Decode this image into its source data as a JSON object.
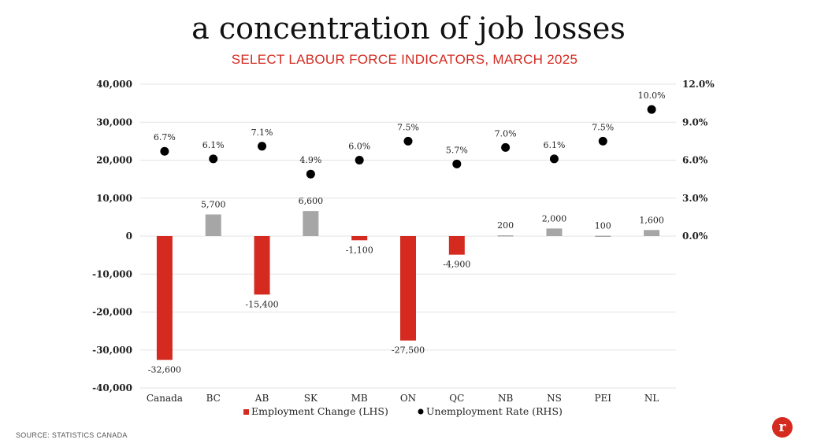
{
  "page": {
    "title": "a concentration of job losses",
    "subtitle": "SELECT LABOUR FORCE INDICATORS, MARCH 2025",
    "source": "SOURCE: STATISTICS CANADA",
    "logo_letter": "r"
  },
  "colors": {
    "negative_bar": "#d42a20",
    "positive_bar": "#a6a6a6",
    "dot": "#000000",
    "grid": "#e3e3e3"
  },
  "chart_data": {
    "type": "bar",
    "categories": [
      "Canada",
      "BC",
      "AB",
      "SK",
      "MB",
      "ON",
      "QC",
      "NB",
      "NS",
      "PEI",
      "NL"
    ],
    "series": [
      {
        "name": "Employment Change (LHS)",
        "type": "bar",
        "axis": "left",
        "values": [
          -32600,
          5700,
          -15400,
          6600,
          -1100,
          -27500,
          -4900,
          200,
          2000,
          100,
          1600
        ],
        "labels": [
          "-32,600",
          "5,700",
          "-15,400",
          "6,600",
          "-1,100",
          "-27,500",
          "-4,900",
          "200",
          "2,000",
          "100",
          "1,600"
        ]
      },
      {
        "name": "Unemployment Rate (RHS)",
        "type": "scatter",
        "axis": "right",
        "values": [
          6.7,
          6.1,
          7.1,
          4.9,
          6.0,
          7.5,
          5.7,
          7.0,
          6.1,
          7.5,
          10.0
        ],
        "labels": [
          "6.7%",
          "6.1%",
          "7.1%",
          "4.9%",
          "6.0%",
          "7.5%",
          "5.7%",
          "7.0%",
          "6.1%",
          "7.5%",
          "10.0%"
        ]
      }
    ],
    "y_left": {
      "ylim": [
        -40000,
        40000
      ],
      "ticks": [
        40000,
        30000,
        20000,
        10000,
        0,
        -10000,
        -20000,
        -30000,
        -40000
      ],
      "tick_labels": [
        "40,000",
        "30,000",
        "20,000",
        "10,000",
        "0",
        "-10,000",
        "-20,000",
        "-30,000",
        "-40,000"
      ]
    },
    "y_right": {
      "ylim": [
        -12,
        12
      ],
      "ticks": [
        12,
        9,
        6,
        3,
        0
      ],
      "tick_labels": [
        "12.0%",
        "9.0%",
        "6.0%",
        "3.0%",
        "0.0%"
      ]
    },
    "grid": true,
    "legend": "bottom"
  }
}
